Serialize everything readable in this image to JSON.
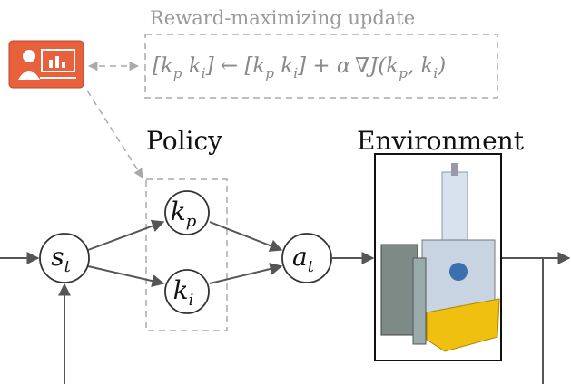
{
  "update_label": "Reward-maximizing update",
  "equation": [
    {
      "text": "[k"
    },
    {
      "sub": "p"
    },
    {
      "text": " k"
    },
    {
      "sub": "i"
    },
    {
      "text": "] ← [k"
    },
    {
      "sub": "p"
    },
    {
      "text": " k"
    },
    {
      "sub": "i"
    },
    {
      "text": "] + α ∇J(k"
    },
    {
      "sub": "p"
    },
    {
      "text": ", k"
    },
    {
      "sub": "i"
    },
    {
      "text": ")"
    }
  ],
  "policy_label": "Policy",
  "environment_label": "Environment",
  "nodes": [
    {
      "main": "s",
      "sub": "t"
    },
    {
      "main": "k",
      "sub": "p"
    },
    {
      "main": "k",
      "sub": "i"
    },
    {
      "main": "a",
      "sub": "t"
    }
  ]
}
